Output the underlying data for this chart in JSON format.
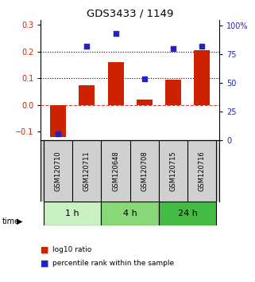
{
  "title": "GDS3433 / 1149",
  "samples": [
    "GSM120710",
    "GSM120711",
    "GSM120648",
    "GSM120708",
    "GSM120715",
    "GSM120716"
  ],
  "log10_ratio": [
    -0.12,
    0.075,
    0.16,
    0.02,
    0.095,
    0.205
  ],
  "percentile_rank": [
    5,
    82,
    93,
    53,
    80,
    82
  ],
  "time_groups": [
    {
      "label": "1 h",
      "indices": [
        0,
        1
      ],
      "color": "#c8f0c0"
    },
    {
      "label": "4 h",
      "indices": [
        2,
        3
      ],
      "color": "#88d878"
    },
    {
      "label": "24 h",
      "indices": [
        4,
        5
      ],
      "color": "#44bb44"
    }
  ],
  "ylim_left": [
    -0.13,
    0.32
  ],
  "ylim_right": [
    0,
    105
  ],
  "yticks_left": [
    -0.1,
    0.0,
    0.1,
    0.2,
    0.3
  ],
  "yticks_right": [
    0,
    25,
    50,
    75,
    100
  ],
  "ytick_labels_right": [
    "0",
    "25",
    "50",
    "75",
    "100%"
  ],
  "hlines": [
    0.1,
    0.2
  ],
  "bar_color": "#cc2200",
  "scatter_color": "#2222cc",
  "zero_line_color": "#cc4444",
  "label_bg_color": "#d0d0d0",
  "background_color": "#ffffff"
}
